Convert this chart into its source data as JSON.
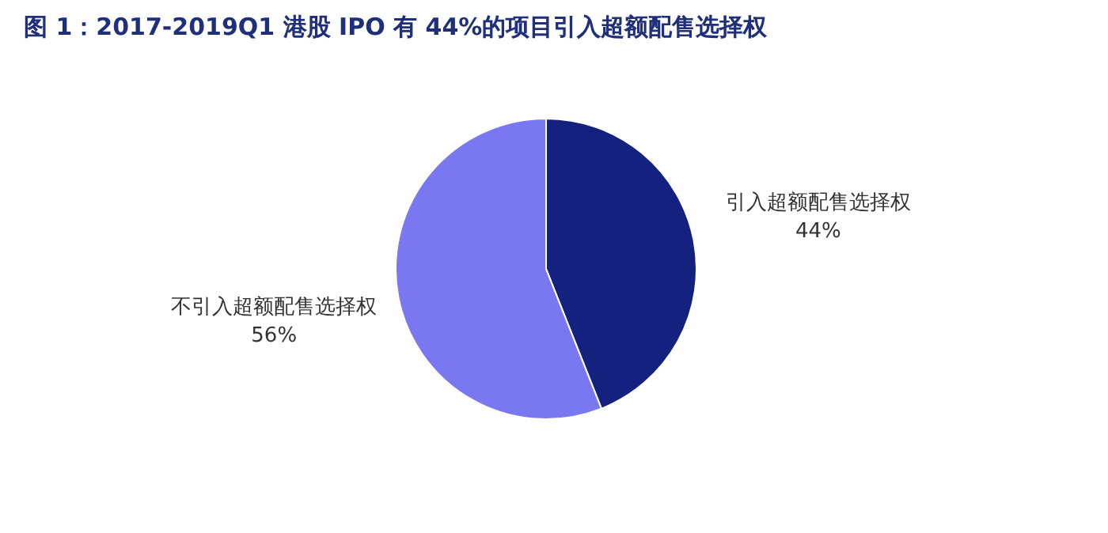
{
  "chart_data": {
    "type": "pie",
    "title": "图 1：2017-2019Q1 港股 IPO 有 44%的项目引入超额配售选择权",
    "categories": [
      "引入超额配售选择权",
      "不引入超额配售选择权"
    ],
    "values": [
      44,
      56
    ],
    "colors": [
      "#14217f",
      "#7a78f0"
    ],
    "value_labels": [
      "44%",
      "56%"
    ]
  }
}
